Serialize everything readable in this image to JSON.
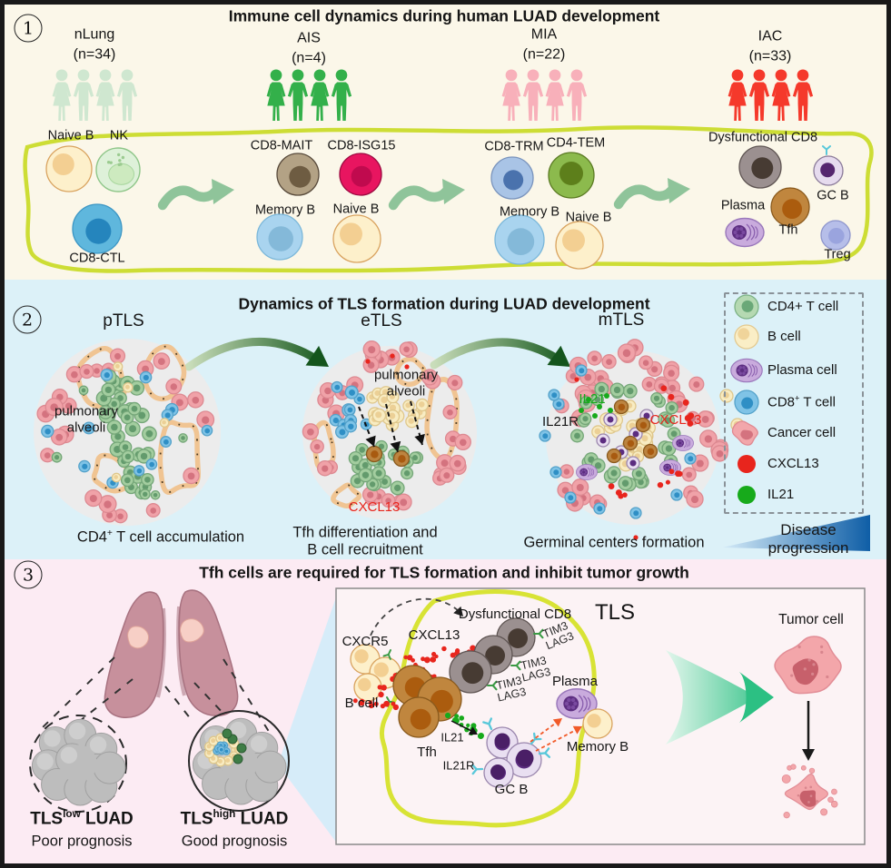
{
  "panel1": {
    "marker": "1",
    "title": "Immune cell dynamics during human LUAD development",
    "groups": [
      {
        "label": "nLung",
        "count": "(n=34)"
      },
      {
        "label": "AIS",
        "count": "(n=4)"
      },
      {
        "label": "MIA",
        "count": "(n=22)"
      },
      {
        "label": "IAC",
        "count": "(n=33)"
      }
    ],
    "cells": {
      "naive_b_nlung": "Naive B",
      "nk": "NK",
      "cd8_ctl": "CD8-CTL",
      "cd8_mait": "CD8-MAIT",
      "cd8_isg15": "CD8-ISG15",
      "memory_b_ais": "Memory B",
      "naive_b_ais": "Naive B",
      "cd8_trm": "CD8-TRM",
      "cd4_tem": "CD4-TEM",
      "memory_b_mia": "Memory B",
      "naive_b_mia": "Naive B",
      "dysfunctional_cd8": "Dysfunctional CD8",
      "gc_b": "GC B",
      "plasma": "Plasma",
      "tfh": "Tfh",
      "treg": "Treg"
    }
  },
  "panel2": {
    "marker": "2",
    "title": "Dynamics of TLS formation during LUAD development",
    "stages": [
      {
        "label": "pTLS",
        "annotation": "pulmonary alveoli",
        "caption": {
          "base": "CD4",
          "sup": "+",
          "rest": " T cell accumulation"
        }
      },
      {
        "label": "eTLS",
        "annotation": "pulmonary alveoli",
        "chemokine": "CXCL13",
        "caption": "Tfh differentiation and\nB cell recruitment"
      },
      {
        "label": "mTLS",
        "il21": "IL21",
        "il21r": "IL21R",
        "cxcl13": "CXCL13",
        "caption": "Germinal centers formation"
      }
    ],
    "legend": [
      {
        "icon": "cd4-t-cell-icon",
        "label": "CD4+ T cell"
      },
      {
        "icon": "b-cell-icon",
        "label": "B cell"
      },
      {
        "icon": "plasma-cell-icon",
        "label": "Plasma cell"
      },
      {
        "icon": "cd8-t-cell-icon",
        "base": "CD8",
        "sup": "+",
        "rest": " T cell"
      },
      {
        "icon": "cancer-cell-icon",
        "label": "Cancer cell"
      },
      {
        "icon": "cxcl13-dot-icon",
        "label": "CXCL13"
      },
      {
        "icon": "il21-dot-icon",
        "label": "IL21"
      }
    ],
    "progression": "Disease\nprogression"
  },
  "panel3": {
    "marker": "3",
    "title": "Tfh cells are required for TLS formation and inhibit tumor growth",
    "outcomes": [
      {
        "base": "TLS",
        "sup": "low",
        "rest": " LUAD",
        "prognosis": "Poor prognosis"
      },
      {
        "base": "TLS",
        "sup": "high",
        "rest": " LUAD",
        "prognosis": "Good prognosis"
      }
    ],
    "tls": {
      "title": "TLS",
      "cxcr5": "CXCR5",
      "cxcl13": "CXCL13",
      "dysfunctional_cd8": "Dysfunctional CD8",
      "tim3": "TIM3",
      "lag3": "LAG3",
      "b_cell": "B cell",
      "plasma": "Plasma",
      "tfh": "Tfh",
      "il21": "IL21",
      "il21r": "IL21R",
      "gc_b": "GC B",
      "memory_b": "Memory B"
    },
    "tumor_cell": "Tumor cell"
  },
  "colors": {
    "panel1_bg": "#fbf7e9",
    "panel2_bg": "#dcf1f8",
    "panel3_bg": "#fcebf3",
    "cxcl13_red": "#e8251d",
    "il21_green": "#17aa1b",
    "tls_outline": "#cddd35",
    "group_colors": [
      "#cfe7d0",
      "#33b04a",
      "#f8b0ba",
      "#f5392b"
    ]
  }
}
